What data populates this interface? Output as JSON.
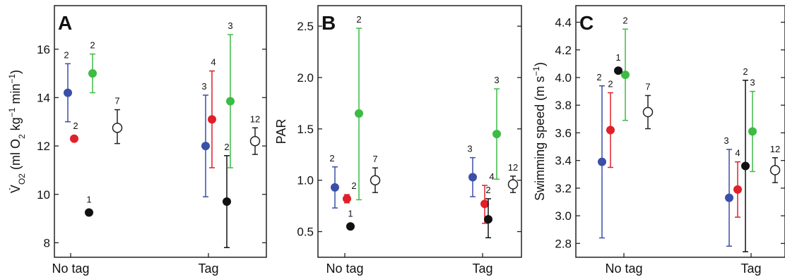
{
  "colors": {
    "blue": "#3a4fa8",
    "red": "#e0202a",
    "green": "#3dbb45",
    "black": "#111111",
    "open": "#ffffff",
    "axis": "#222222"
  },
  "chart_data": [
    {
      "type": "scatter",
      "panel": "A",
      "ylabel_html": "V̇O2 (ml O2 kg−1 min−1)",
      "ylabel_parts": [
        "V̇",
        "O2",
        " (ml O",
        "2",
        " kg",
        "−1",
        " min",
        "−1",
        ")"
      ],
      "categories": [
        "No tag",
        "Tag"
      ],
      "ylim": [
        7.4,
        17.8
      ],
      "yticks": [
        8,
        10,
        12,
        14,
        16
      ],
      "yticklabels": [
        "8",
        "10",
        "12",
        "14",
        "16"
      ],
      "series": [
        {
          "color": "blue",
          "points": [
            {
              "cat": 0,
              "y": 14.2,
              "lo": 13.0,
              "hi": 15.4,
              "n": "2"
            },
            {
              "cat": 1,
              "y": 12.0,
              "lo": 9.9,
              "hi": 14.1,
              "n": "3"
            }
          ]
        },
        {
          "color": "red",
          "points": [
            {
              "cat": 0,
              "y": 12.3,
              "lo": null,
              "hi": null,
              "n": "2"
            },
            {
              "cat": 1,
              "y": 13.1,
              "lo": 11.1,
              "hi": 15.1,
              "n": "4"
            }
          ]
        },
        {
          "color": "green",
          "points": [
            {
              "cat": 0,
              "y": 15.0,
              "lo": 14.2,
              "hi": 15.8,
              "n": "2"
            },
            {
              "cat": 1,
              "y": 13.85,
              "lo": 11.1,
              "hi": 16.6,
              "n": "3"
            }
          ]
        },
        {
          "color": "black",
          "points": [
            {
              "cat": 0,
              "y": 9.25,
              "lo": null,
              "hi": null,
              "n": "1"
            },
            {
              "cat": 1,
              "y": 9.7,
              "lo": 7.8,
              "hi": 11.6,
              "n": "2"
            }
          ]
        },
        {
          "color": "open",
          "points": [
            {
              "cat": 0,
              "y": 12.75,
              "lo": 12.1,
              "hi": 13.5,
              "n": "7"
            },
            {
              "cat": 1,
              "y": 12.2,
              "lo": 11.65,
              "hi": 12.75,
              "n": "12"
            }
          ]
        }
      ]
    },
    {
      "type": "scatter",
      "panel": "B",
      "ylabel": "PAR",
      "categories": [
        "No tag",
        "Tag"
      ],
      "ylim": [
        0.25,
        2.7
      ],
      "yticks": [
        0.5,
        1.0,
        1.5,
        2.0,
        2.5
      ],
      "yticklabels": [
        "0.5",
        "1.0",
        "1.5",
        "2.0",
        "2.5"
      ],
      "series": [
        {
          "color": "blue",
          "points": [
            {
              "cat": 0,
              "y": 0.93,
              "lo": 0.73,
              "hi": 1.13,
              "n": "2"
            },
            {
              "cat": 1,
              "y": 1.03,
              "lo": 0.84,
              "hi": 1.22,
              "n": "3"
            }
          ]
        },
        {
          "color": "red",
          "points": [
            {
              "cat": 0,
              "y": 0.82,
              "lo": 0.78,
              "hi": 0.86,
              "n": "2"
            },
            {
              "cat": 1,
              "y": 0.77,
              "lo": 0.58,
              "hi": 0.95,
              "n": "4"
            }
          ]
        },
        {
          "color": "green",
          "points": [
            {
              "cat": 0,
              "y": 1.65,
              "lo": 0.81,
              "hi": 2.48,
              "n": "2"
            },
            {
              "cat": 1,
              "y": 1.45,
              "lo": 1.01,
              "hi": 1.89,
              "n": "3"
            }
          ]
        },
        {
          "color": "black",
          "points": [
            {
              "cat": 0,
              "y": 0.55,
              "lo": null,
              "hi": null,
              "n": "1"
            },
            {
              "cat": 1,
              "y": 0.62,
              "lo": 0.44,
              "hi": 0.82,
              "n": "2"
            }
          ]
        },
        {
          "color": "open",
          "points": [
            {
              "cat": 0,
              "y": 1.0,
              "lo": 0.88,
              "hi": 1.12,
              "n": "7"
            },
            {
              "cat": 1,
              "y": 0.96,
              "lo": 0.88,
              "hi": 1.04,
              "n": "12"
            }
          ]
        }
      ]
    },
    {
      "type": "scatter",
      "panel": "C",
      "ylabel_parts": [
        "Swimming speed (m s",
        "−1",
        ")"
      ],
      "categories": [
        "No tag",
        "Tag"
      ],
      "ylim": [
        2.7,
        4.52
      ],
      "yticks": [
        2.8,
        3.0,
        3.2,
        3.4,
        3.6,
        3.8,
        4.0,
        4.2,
        4.4
      ],
      "yticklabels": [
        "2.8",
        "3.0",
        "3.2",
        "3.4",
        "3.6",
        "3.8",
        "4.0",
        "4.2",
        "4.4"
      ],
      "series": [
        {
          "color": "blue",
          "points": [
            {
              "cat": 0,
              "y": 3.39,
              "lo": 2.84,
              "hi": 3.94,
              "n": "2"
            },
            {
              "cat": 1,
              "y": 3.13,
              "lo": 2.78,
              "hi": 3.48,
              "n": "3"
            }
          ]
        },
        {
          "color": "red",
          "points": [
            {
              "cat": 0,
              "y": 3.62,
              "lo": 3.35,
              "hi": 3.89,
              "n": "2"
            },
            {
              "cat": 1,
              "y": 3.19,
              "lo": 2.99,
              "hi": 3.39,
              "n": "4"
            }
          ]
        },
        {
          "color": "green",
          "points": [
            {
              "cat": 0,
              "y": 4.02,
              "lo": 3.69,
              "hi": 4.35,
              "n": "2"
            },
            {
              "cat": 1,
              "y": 3.61,
              "lo": 3.32,
              "hi": 3.9,
              "n": "3"
            }
          ]
        },
        {
          "color": "black",
          "points": [
            {
              "cat": 0,
              "y": 4.05,
              "lo": null,
              "hi": null,
              "n": "1"
            },
            {
              "cat": 1,
              "y": 3.36,
              "lo": 2.74,
              "hi": 3.98,
              "n": "2"
            }
          ]
        },
        {
          "color": "open",
          "points": [
            {
              "cat": 0,
              "y": 3.75,
              "lo": 3.63,
              "hi": 3.87,
              "n": "7"
            },
            {
              "cat": 1,
              "y": 3.33,
              "lo": 3.24,
              "hi": 3.42,
              "n": "12"
            }
          ]
        }
      ]
    }
  ]
}
